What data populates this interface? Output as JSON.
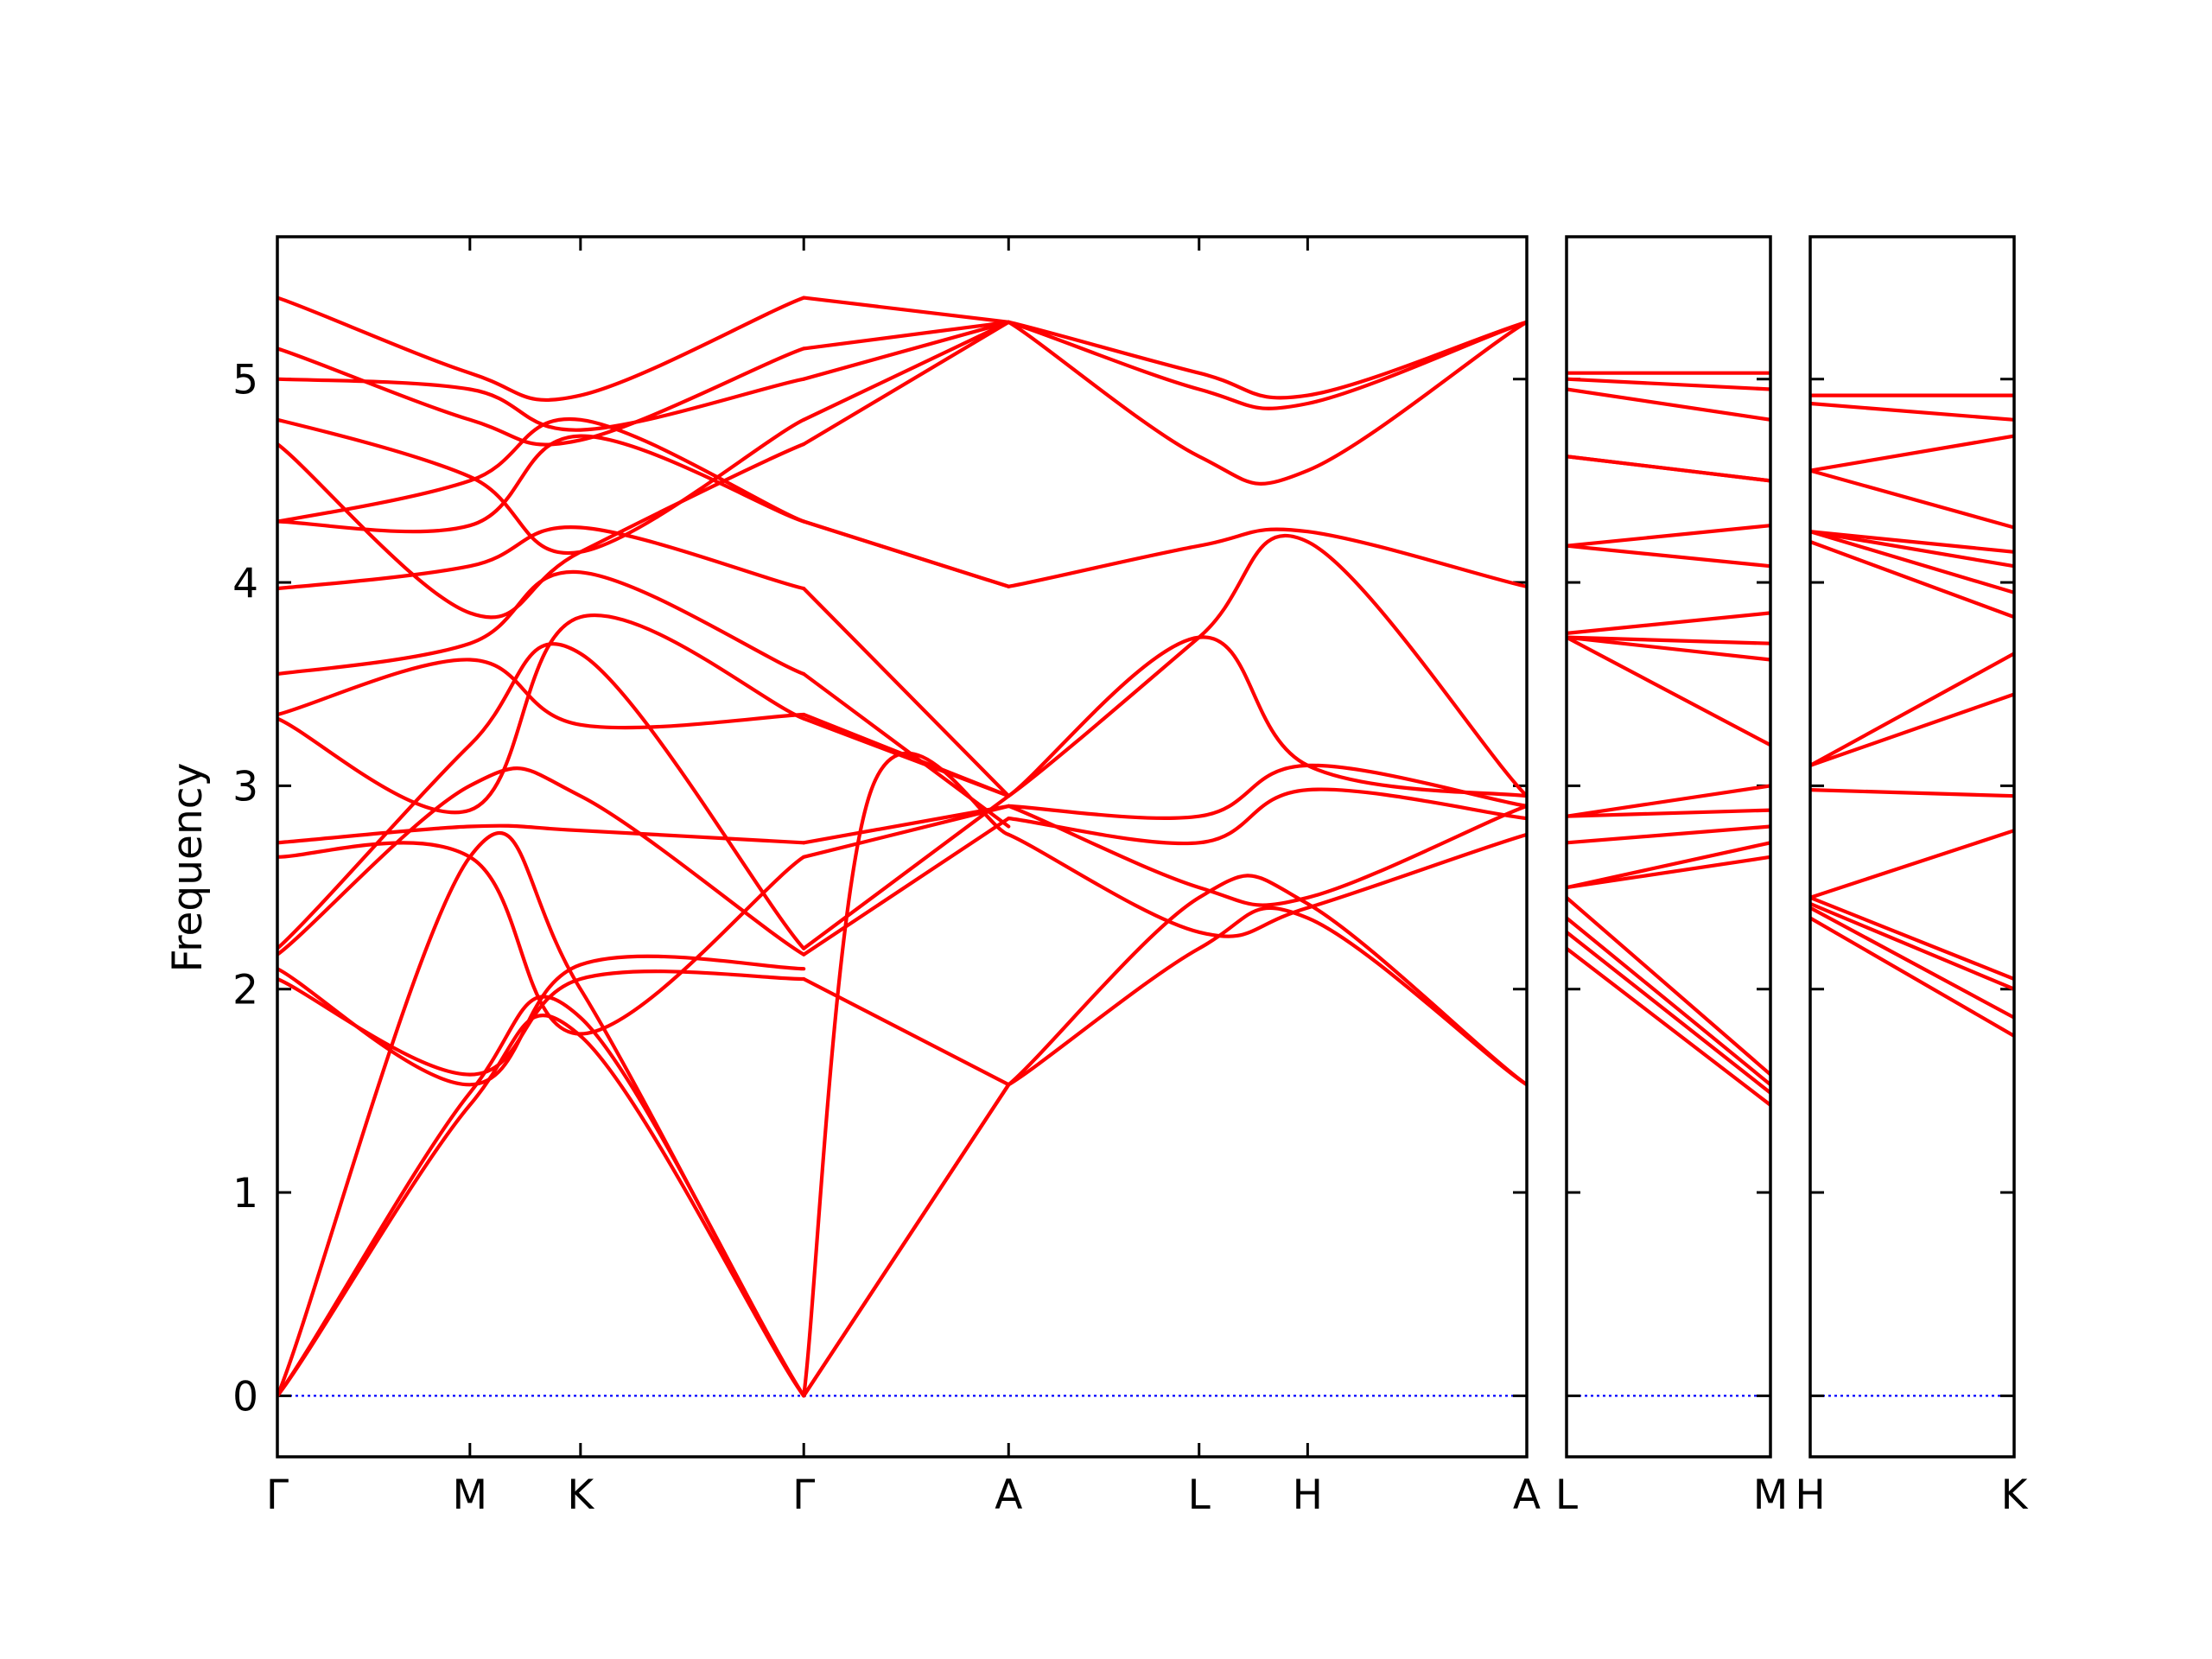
{
  "chart_data": {
    "type": "line",
    "ylabel": "Frequency",
    "xlabel": "",
    "ylim": [
      -0.3,
      5.7
    ],
    "yticks": [
      0,
      1,
      2,
      3,
      4,
      5
    ],
    "grid": false,
    "colors": {
      "bands": "#ff0000",
      "zero_line": "#0000ff",
      "frame": "#000000"
    },
    "panels": [
      {
        "x_labels": [
          "Γ",
          "M",
          "K",
          "Γ",
          "A",
          "L",
          "H",
          "A"
        ],
        "x_range": [
          0,
          6.1
        ],
        "x_ticks": [
          0,
          0.94,
          1.48,
          2.57,
          3.57,
          4.5,
          5.03,
          6.1
        ],
        "series": [
          {
            "x": [
              0,
              0.94,
              1.48,
              2.57
            ],
            "y": [
              0,
              1.43,
              1.77,
              0
            ]
          },
          {
            "x": [
              0,
              0.94,
              1.48,
              2.57
            ],
            "y": [
              0,
              1.49,
              1.86,
              0
            ]
          },
          {
            "x": [
              0,
              0.94,
              1.48,
              2.57
            ],
            "y": [
              0,
              2.65,
              2.0,
              0
            ]
          },
          {
            "x": [
              2.57,
              3.57
            ],
            "y": [
              0,
              1.53
            ]
          },
          {
            "x": [
              2.57,
              3.57
            ],
            "y": [
              0,
              1.53
            ]
          },
          {
            "x": [
              2.57,
              2.9,
              3.57
            ],
            "y": [
              0,
              2.98,
              2.76
            ]
          },
          {
            "x": [
              0,
              0.94,
              1.48,
              2.57
            ],
            "y": [
              2.05,
              1.58,
              2.05,
              2.05
            ]
          },
          {
            "x": [
              0,
              0.94,
              1.48,
              2.57
            ],
            "y": [
              2.1,
              1.53,
              2.12,
              2.1
            ]
          },
          {
            "x": [
              0,
              0.94,
              1.48,
              2.57
            ],
            "y": [
              2.17,
              3.0,
              2.95,
              2.17
            ]
          },
          {
            "x": [
              0,
              0.94,
              1.48,
              2.57
            ],
            "y": [
              2.2,
              3.2,
              3.65,
              2.2
            ]
          },
          {
            "x": [
              2.57,
              3.57
            ],
            "y": [
              2.05,
              1.53
            ]
          },
          {
            "x": [
              2.57,
              3.57
            ],
            "y": [
              2.17,
              2.84
            ]
          },
          {
            "x": [
              2.57,
              3.57
            ],
            "y": [
              2.2,
              2.95
            ]
          },
          {
            "x": [
              0,
              0.94,
              1.48,
              2.57
            ],
            "y": [
              2.65,
              2.65,
              1.78,
              2.65
            ]
          },
          {
            "x": [
              0,
              0.94,
              1.48,
              2.57
            ],
            "y": [
              2.72,
              2.8,
              2.78,
              2.72
            ]
          },
          {
            "x": [
              0,
              0.94,
              1.48,
              2.57
            ],
            "y": [
              3.33,
              2.88,
              3.83,
              3.33
            ]
          },
          {
            "x": [
              0,
              0.94,
              1.48,
              2.57
            ],
            "y": [
              3.35,
              3.62,
              3.3,
              3.35
            ]
          },
          {
            "x": [
              2.57,
              3.57
            ],
            "y": [
              2.65,
              2.9
            ]
          },
          {
            "x": [
              2.57,
              3.57
            ],
            "y": [
              2.72,
              2.9
            ]
          },
          {
            "x": [
              2.57,
              3.57
            ],
            "y": [
              3.33,
              2.95
            ]
          },
          {
            "x": [
              2.57,
              3.57
            ],
            "y": [
              3.35,
              2.95
            ]
          },
          {
            "x": [
              0,
              0.94,
              1.48,
              2.57
            ],
            "y": [
              3.55,
              3.7,
              4.05,
              3.55
            ]
          },
          {
            "x": [
              0,
              0.94,
              1.48,
              2.57
            ],
            "y": [
              3.97,
              4.08,
              4.27,
              3.97
            ]
          },
          {
            "x": [
              0,
              0.94,
              1.48,
              2.57
            ],
            "y": [
              4.3,
              4.28,
              4.72,
              4.3
            ]
          },
          {
            "x": [
              0,
              0.94,
              1.48,
              2.57
            ],
            "y": [
              4.3,
              4.5,
              4.8,
              4.3
            ]
          },
          {
            "x": [
              2.57,
              3.57
            ],
            "y": [
              3.55,
              2.8
            ]
          },
          {
            "x": [
              2.57,
              3.57
            ],
            "y": [
              3.97,
              2.95
            ]
          },
          {
            "x": [
              2.57,
              3.57
            ],
            "y": [
              4.3,
              3.98
            ]
          },
          {
            "x": [
              2.57,
              3.57
            ],
            "y": [
              4.3,
              3.98
            ]
          },
          {
            "x": [
              0,
              0.94,
              1.48,
              2.57
            ],
            "y": [
              4.68,
              3.85,
              4.15,
              4.68
            ]
          },
          {
            "x": [
              0,
              0.94,
              1.48,
              2.57
            ],
            "y": [
              4.8,
              4.52,
              4.15,
              4.8
            ]
          },
          {
            "x": [
              0,
              0.94,
              1.48,
              2.57
            ],
            "y": [
              5.0,
              4.95,
              4.75,
              5.0
            ]
          },
          {
            "x": [
              0,
              0.94,
              1.48,
              2.57
            ],
            "y": [
              5.15,
              4.8,
              4.7,
              5.15
            ]
          },
          {
            "x": [
              0,
              0.94,
              1.48,
              2.57
            ],
            "y": [
              5.4,
              5.03,
              4.92,
              5.4
            ]
          },
          {
            "x": [
              2.57,
              3.57
            ],
            "y": [
              4.68,
              5.28
            ]
          },
          {
            "x": [
              2.57,
              3.57
            ],
            "y": [
              4.8,
              5.28
            ]
          },
          {
            "x": [
              2.57,
              3.57
            ],
            "y": [
              5.0,
              5.28
            ]
          },
          {
            "x": [
              2.57,
              3.57
            ],
            "y": [
              5.15,
              5.28
            ]
          },
          {
            "x": [
              2.57,
              3.57
            ],
            "y": [
              5.4,
              5.28
            ]
          },
          {
            "x": [
              3.57,
              4.5,
              5.03,
              6.1
            ],
            "y": [
              1.53,
              2.2,
              2.35,
              1.53
            ]
          },
          {
            "x": [
              3.57,
              4.5,
              5.03,
              6.1
            ],
            "y": [
              1.53,
              2.45,
              2.42,
              1.53
            ]
          },
          {
            "x": [
              3.57,
              4.5,
              5.03,
              6.1
            ],
            "y": [
              2.76,
              2.28,
              2.4,
              2.76
            ]
          },
          {
            "x": [
              3.57,
              4.5,
              5.03,
              6.1
            ],
            "y": [
              2.84,
              2.72,
              2.98,
              2.84
            ]
          },
          {
            "x": [
              3.57,
              4.5,
              5.03,
              6.1
            ],
            "y": [
              2.9,
              2.5,
              2.45,
              2.9
            ]
          },
          {
            "x": [
              3.57,
              4.5,
              5.03,
              6.1
            ],
            "y": [
              2.9,
              2.85,
              3.1,
              2.9
            ]
          },
          {
            "x": [
              3.57,
              4.5,
              5.03,
              6.1
            ],
            "y": [
              2.95,
              3.73,
              3.1,
              2.95
            ]
          },
          {
            "x": [
              3.57,
              4.5,
              5.03,
              6.1
            ],
            "y": [
              2.95,
              3.73,
              4.2,
              2.95
            ]
          },
          {
            "x": [
              3.57,
              4.5,
              5.03,
              6.1
            ],
            "y": [
              3.98,
              4.18,
              4.25,
              3.98
            ]
          },
          {
            "x": [
              3.57,
              4.5,
              5.03,
              6.1
            ],
            "y": [
              5.28,
              4.62,
              4.55,
              5.28
            ]
          },
          {
            "x": [
              3.57,
              4.5,
              5.03,
              6.1
            ],
            "y": [
              5.28,
              4.95,
              4.88,
              5.28
            ]
          },
          {
            "x": [
              3.57,
              4.5,
              5.03,
              6.1
            ],
            "y": [
              5.28,
              5.03,
              4.92,
              5.28
            ]
          }
        ]
      },
      {
        "x_labels": [
          "L",
          "M"
        ],
        "x_range": [
          0,
          1
        ],
        "x_ticks": [
          0,
          1
        ],
        "series": [
          {
            "x": [
              0,
              1
            ],
            "y": [
              2.2,
              1.43
            ]
          },
          {
            "x": [
              0,
              1
            ],
            "y": [
              2.28,
              1.49
            ]
          },
          {
            "x": [
              0,
              1
            ],
            "y": [
              2.35,
              1.53
            ]
          },
          {
            "x": [
              0,
              1
            ],
            "y": [
              2.45,
              1.58
            ]
          },
          {
            "x": [
              0,
              1
            ],
            "y": [
              2.5,
              2.65
            ]
          },
          {
            "x": [
              0,
              1
            ],
            "y": [
              2.5,
              2.72
            ]
          },
          {
            "x": [
              0,
              1
            ],
            "y": [
              2.72,
              2.8
            ]
          },
          {
            "x": [
              0,
              1
            ],
            "y": [
              2.85,
              2.88
            ]
          },
          {
            "x": [
              0,
              1
            ],
            "y": [
              2.85,
              3.0
            ]
          },
          {
            "x": [
              0,
              1
            ],
            "y": [
              3.73,
              3.2
            ]
          },
          {
            "x": [
              0,
              1
            ],
            "y": [
              3.73,
              3.62
            ]
          },
          {
            "x": [
              0,
              1
            ],
            "y": [
              3.73,
              3.7
            ]
          },
          {
            "x": [
              0,
              1
            ],
            "y": [
              3.75,
              3.85
            ]
          },
          {
            "x": [
              0,
              1
            ],
            "y": [
              4.18,
              4.08
            ]
          },
          {
            "x": [
              0,
              1
            ],
            "y": [
              4.18,
              4.28
            ]
          },
          {
            "x": [
              0,
              1
            ],
            "y": [
              4.62,
              4.5
            ]
          },
          {
            "x": [
              0,
              1
            ],
            "y": [
              4.62,
              4.5
            ]
          },
          {
            "x": [
              0,
              1
            ],
            "y": [
              4.95,
              4.8
            ]
          },
          {
            "x": [
              0,
              1
            ],
            "y": [
              5.0,
              4.95
            ]
          },
          {
            "x": [
              0,
              1
            ],
            "y": [
              5.03,
              5.03
            ]
          }
        ]
      },
      {
        "x_labels": [
          "H",
          "K"
        ],
        "x_range": [
          0,
          1
        ],
        "x_ticks": [
          0,
          1
        ],
        "series": [
          {
            "x": [
              0,
              1
            ],
            "y": [
              2.35,
              1.77
            ]
          },
          {
            "x": [
              0,
              1
            ],
            "y": [
              2.4,
              1.86
            ]
          },
          {
            "x": [
              0,
              1
            ],
            "y": [
              2.42,
              2.0
            ]
          },
          {
            "x": [
              0,
              1
            ],
            "y": [
              2.45,
              2.05
            ]
          },
          {
            "x": [
              0,
              1
            ],
            "y": [
              2.45,
              2.78
            ]
          },
          {
            "x": [
              0,
              1
            ],
            "y": [
              2.98,
              2.95
            ]
          },
          {
            "x": [
              0,
              1
            ],
            "y": [
              3.1,
              3.45
            ]
          },
          {
            "x": [
              0,
              1
            ],
            "y": [
              3.1,
              3.65
            ]
          },
          {
            "x": [
              0,
              1
            ],
            "y": [
              4.2,
              3.83
            ]
          },
          {
            "x": [
              0,
              1
            ],
            "y": [
              4.25,
              3.95
            ]
          },
          {
            "x": [
              0,
              1
            ],
            "y": [
              4.25,
              4.08
            ]
          },
          {
            "x": [
              0,
              1
            ],
            "y": [
              4.25,
              4.15
            ]
          },
          {
            "x": [
              0,
              1
            ],
            "y": [
              4.55,
              4.27
            ]
          },
          {
            "x": [
              0,
              1
            ],
            "y": [
              4.55,
              4.72
            ]
          },
          {
            "x": [
              0,
              1
            ],
            "y": [
              4.88,
              4.8
            ]
          },
          {
            "x": [
              0,
              1
            ],
            "y": [
              4.92,
              4.92
            ]
          }
        ]
      }
    ]
  }
}
